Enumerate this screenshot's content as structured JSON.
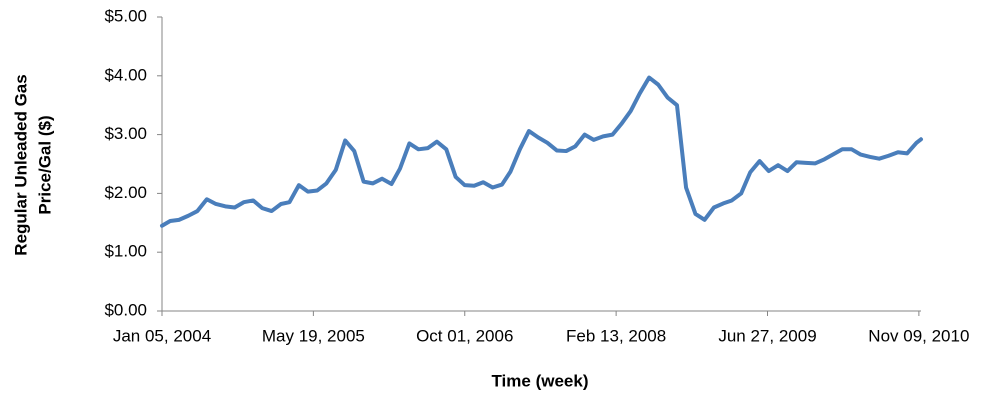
{
  "chart_data": {
    "type": "line",
    "ylabel": [
      "Regular Unleaded Gas",
      "Price/Gal ($)"
    ],
    "xlabel": "Time (week)",
    "color": "#4a7ebb",
    "grid": false,
    "xlim": [
      "2004-01-05",
      "2010-11-16"
    ],
    "xticks": [
      {
        "value": "2004-01-05",
        "label": "Jan 05, 2004"
      },
      {
        "value": "2005-05-19",
        "label": "May 19, 2005"
      },
      {
        "value": "2006-10-01",
        "label": "Oct 01, 2006"
      },
      {
        "value": "2008-02-13",
        "label": "Feb 13, 2008"
      },
      {
        "value": "2009-06-27",
        "label": "Jun 27, 2009"
      },
      {
        "value": "2010-11-09",
        "label": "Nov 09, 2010"
      }
    ],
    "ylim": [
      0,
      5
    ],
    "yticks": [
      {
        "value": 0,
        "label": "$0.00"
      },
      {
        "value": 1,
        "label": "$1.00"
      },
      {
        "value": 2,
        "label": "$2.00"
      },
      {
        "value": 3,
        "label": "$3.00"
      },
      {
        "value": 4,
        "label": "$4.00"
      },
      {
        "value": 5,
        "label": "$5.00"
      }
    ],
    "x": [
      "2004-01-05",
      "2004-02-01",
      "2004-03-01",
      "2004-04-01",
      "2004-05-01",
      "2004-06-01",
      "2004-07-01",
      "2004-08-01",
      "2004-09-01",
      "2004-10-01",
      "2004-11-01",
      "2004-12-01",
      "2005-01-01",
      "2005-02-01",
      "2005-03-01",
      "2005-04-01",
      "2005-05-01",
      "2005-06-01",
      "2005-07-01",
      "2005-08-01",
      "2005-09-01",
      "2005-10-01",
      "2005-11-01",
      "2005-12-01",
      "2006-01-01",
      "2006-02-01",
      "2006-03-01",
      "2006-04-01",
      "2006-05-01",
      "2006-06-01",
      "2006-07-01",
      "2006-08-01",
      "2006-09-01",
      "2006-10-01",
      "2006-11-01",
      "2006-12-01",
      "2007-01-01",
      "2007-02-01",
      "2007-03-01",
      "2007-04-01",
      "2007-05-01",
      "2007-06-01",
      "2007-07-01",
      "2007-08-01",
      "2007-09-01",
      "2007-10-01",
      "2007-11-01",
      "2007-12-01",
      "2008-01-01",
      "2008-02-01",
      "2008-03-01",
      "2008-04-01",
      "2008-05-01",
      "2008-06-01",
      "2008-07-01",
      "2008-08-01",
      "2008-09-01",
      "2008-10-01",
      "2008-11-01",
      "2008-12-01",
      "2009-01-01",
      "2009-02-01",
      "2009-03-01",
      "2009-04-01",
      "2009-05-01",
      "2009-06-01",
      "2009-07-01",
      "2009-08-01",
      "2009-09-01",
      "2009-10-01",
      "2009-11-01",
      "2009-12-01",
      "2010-01-01",
      "2010-02-01",
      "2010-03-01",
      "2010-04-01",
      "2010-05-01",
      "2010-06-01",
      "2010-07-01",
      "2010-08-01",
      "2010-09-01",
      "2010-10-01",
      "2010-11-01",
      "2010-11-16"
    ],
    "values": [
      1.45,
      1.53,
      1.55,
      1.62,
      1.7,
      1.9,
      1.82,
      1.78,
      1.76,
      1.85,
      1.88,
      1.75,
      1.7,
      1.82,
      1.85,
      2.14,
      2.03,
      2.05,
      2.17,
      2.4,
      2.9,
      2.72,
      2.2,
      2.17,
      2.25,
      2.16,
      2.42,
      2.85,
      2.75,
      2.77,
      2.88,
      2.75,
      2.28,
      2.14,
      2.13,
      2.19,
      2.1,
      2.15,
      2.37,
      2.75,
      3.06,
      2.95,
      2.86,
      2.73,
      2.72,
      2.8,
      3.0,
      2.91,
      2.97,
      3.0,
      3.18,
      3.4,
      3.7,
      3.97,
      3.85,
      3.63,
      3.5,
      2.1,
      1.65,
      1.55,
      1.76,
      1.83,
      1.88,
      2.0,
      2.36,
      2.55,
      2.38,
      2.48,
      2.38,
      2.53,
      2.52,
      2.51,
      2.58,
      2.67,
      2.75,
      2.75,
      2.66,
      2.62,
      2.59,
      2.64,
      2.7,
      2.68,
      2.86,
      2.92
    ]
  }
}
